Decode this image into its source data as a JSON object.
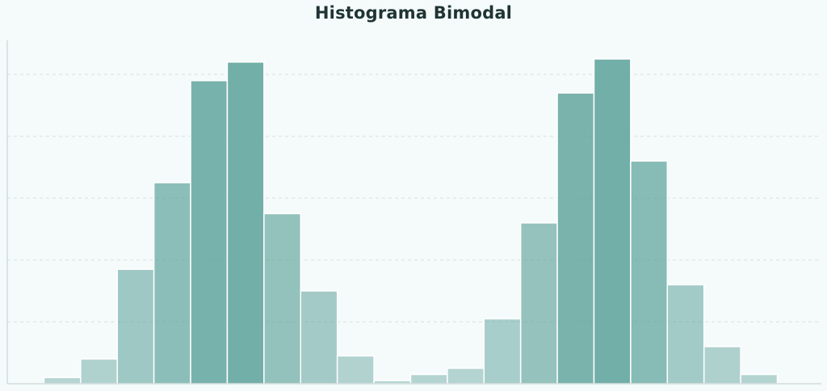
{
  "chart_data": {
    "type": "bar",
    "title": "Histograma Bimodal",
    "xlabel": "",
    "ylabel": "",
    "grid": true,
    "bar_color": "#5fa39c",
    "bins": [
      {
        "left": 0,
        "right": 1,
        "count": 2
      },
      {
        "left": 1,
        "right": 2,
        "count": 8
      },
      {
        "left": 2,
        "right": 3,
        "count": 37
      },
      {
        "left": 3,
        "right": 4,
        "count": 65
      },
      {
        "left": 4,
        "right": 5,
        "count": 98
      },
      {
        "left": 5,
        "right": 6,
        "count": 104
      },
      {
        "left": 6,
        "right": 7,
        "count": 55
      },
      {
        "left": 7,
        "right": 8,
        "count": 30
      },
      {
        "left": 8,
        "right": 9,
        "count": 9
      },
      {
        "left": 9,
        "right": 10,
        "count": 1
      },
      {
        "left": 10,
        "right": 11,
        "count": 3
      },
      {
        "left": 11,
        "right": 12,
        "count": 5
      },
      {
        "left": 12,
        "right": 13,
        "count": 21
      },
      {
        "left": 13,
        "right": 14,
        "count": 52
      },
      {
        "left": 14,
        "right": 15,
        "count": 94
      },
      {
        "left": 15,
        "right": 16,
        "count": 105
      },
      {
        "left": 16,
        "right": 17,
        "count": 72
      },
      {
        "left": 17,
        "right": 18,
        "count": 32
      },
      {
        "left": 18,
        "right": 19,
        "count": 12
      },
      {
        "left": 19,
        "right": 20,
        "count": 3
      }
    ],
    "xlim": [
      -1,
      21.2
    ],
    "ylim": [
      0,
      111
    ],
    "yticks": [
      20,
      40,
      60,
      80,
      100
    ]
  }
}
